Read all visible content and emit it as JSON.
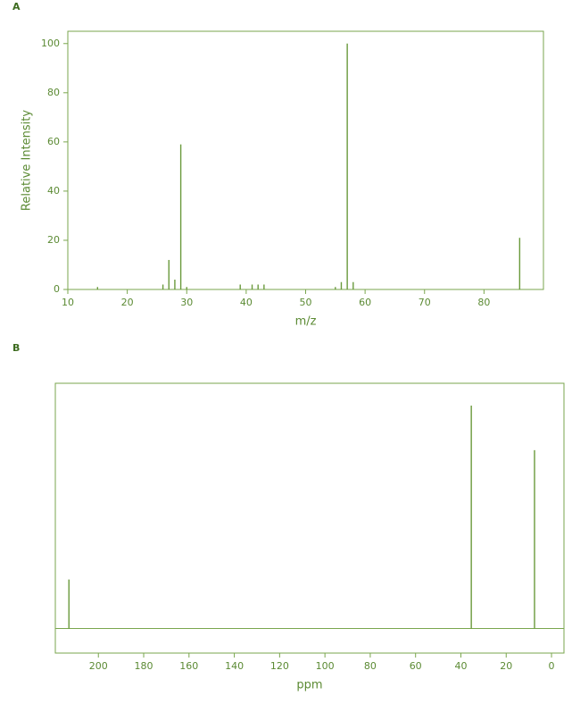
{
  "chart_data": [
    {
      "type": "stick",
      "label": "A",
      "xlabel": "m/z",
      "ylabel": "Relative Intensity",
      "x": [
        15,
        26,
        27,
        28,
        29,
        30,
        39,
        41,
        42,
        43,
        55,
        56,
        57,
        58,
        86
      ],
      "values": [
        1,
        2,
        12,
        4,
        59,
        1,
        2,
        2,
        2,
        2,
        1,
        3,
        100,
        3,
        21
      ],
      "color": "#6a9a3c",
      "xlim": [
        10,
        90
      ],
      "xticks": [
        10,
        20,
        30,
        40,
        50,
        60,
        70,
        80
      ],
      "ylim": [
        0,
        105
      ],
      "yticks": [
        0,
        20,
        40,
        60,
        80,
        100
      ]
    },
    {
      "type": "stick",
      "label": "B",
      "xlabel": "ppm",
      "x": [
        213,
        35.4,
        7.5
      ],
      "values": [
        22,
        100,
        80
      ],
      "color": "#6a9a3c",
      "xlim": [
        219,
        -5.5
      ],
      "xticks": [
        200,
        180,
        160,
        140,
        120,
        100,
        80,
        60,
        40,
        20,
        0
      ],
      "ylim": [
        -11,
        110
      ]
    }
  ]
}
